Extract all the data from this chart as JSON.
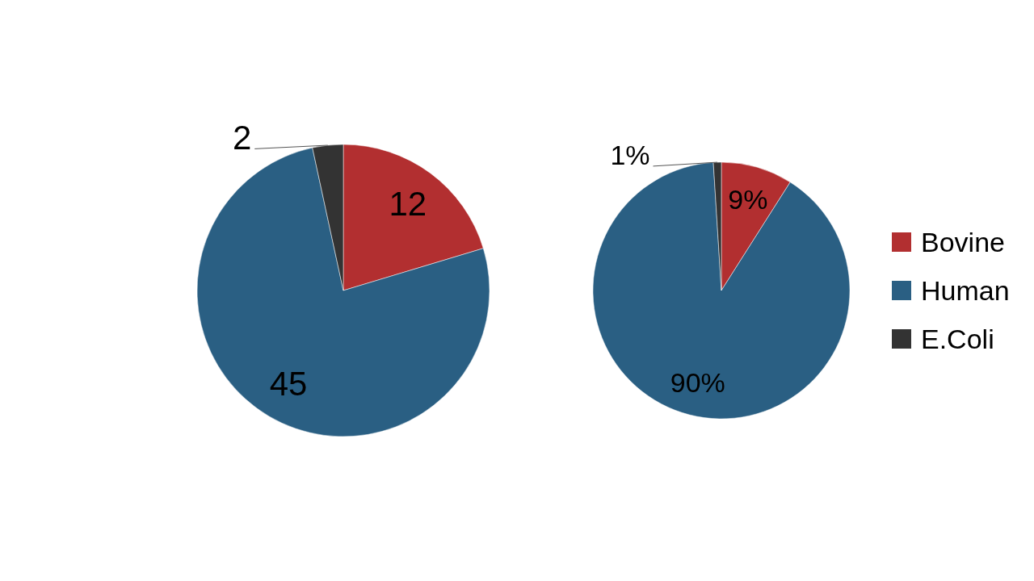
{
  "chart_data": [
    {
      "type": "pie",
      "categories": [
        null,
        null,
        null
      ],
      "values": [
        12,
        45,
        2
      ],
      "colors": [
        "#b22f30",
        "#2a5f83",
        "#333333"
      ],
      "data_labels": true,
      "legend": false
    },
    {
      "type": "pie",
      "categories": [
        "Bovine",
        "Human",
        "E.Coli"
      ],
      "values": [
        9,
        90,
        1
      ],
      "colors": [
        "#b22f30",
        "#2a5f83",
        "#333333"
      ],
      "value_labels": [
        "9%",
        "90%",
        "1%"
      ],
      "legend": "right"
    }
  ]
}
